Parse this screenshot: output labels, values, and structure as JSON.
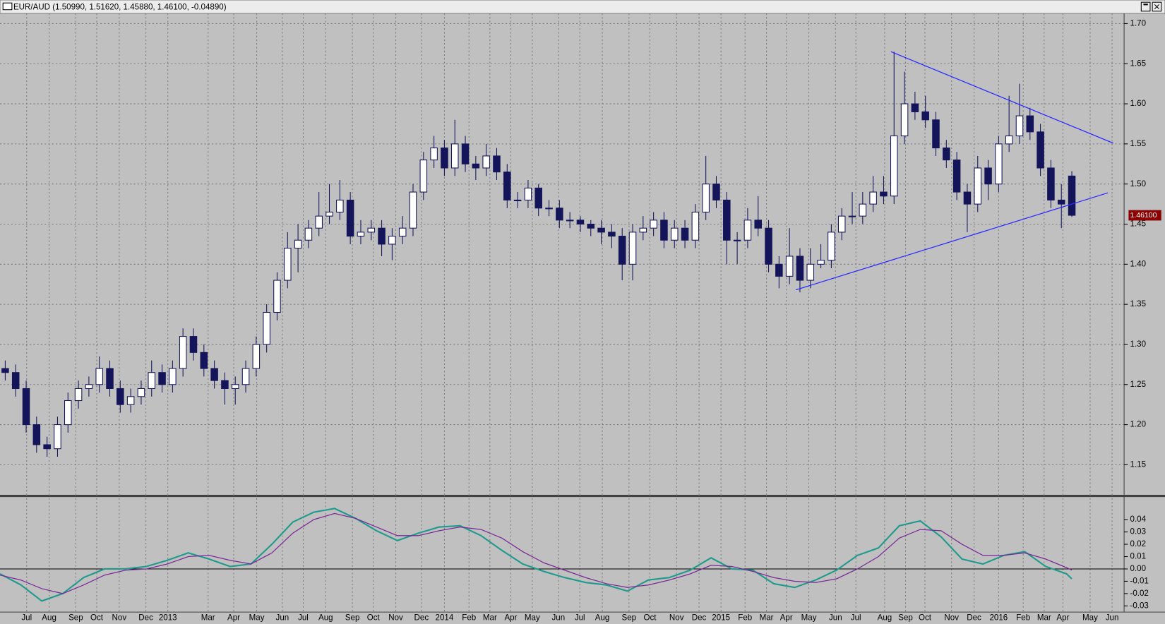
{
  "chart_data": [
    {
      "type": "candlestick",
      "title": "EUR/AUD (1.50990, 1.51620, 1.45880, 1.46100, -0.04890)",
      "last_price_label": "1.46100",
      "up_color": "#ffffff",
      "down_color": "#14145a",
      "grid": true,
      "xlim": [
        -1,
        214
      ],
      "ylim": [
        1.113,
        1.709
      ],
      "yticks": [
        1.15,
        {
          "value": 1.2,
          "label": "1.20"
        },
        1.25,
        {
          "value": 1.3,
          "label": "1.30"
        },
        1.35,
        {
          "value": 1.4,
          "label": "1.40"
        },
        1.45,
        {
          "value": 1.5,
          "label": "1.50"
        },
        1.55,
        {
          "value": 1.6,
          "label": "1.60"
        },
        1.65,
        {
          "value": 1.7,
          "label": "1.70"
        }
      ],
      "x": [
        0,
        2,
        4,
        6,
        8,
        10,
        12,
        14,
        16,
        18,
        20,
        22,
        24,
        26,
        28,
        30,
        32,
        34,
        36,
        38,
        40,
        42,
        44,
        46,
        48,
        50,
        52,
        54,
        56,
        58,
        60,
        62,
        64,
        66,
        68,
        70,
        72,
        74,
        76,
        78,
        80,
        82,
        84,
        86,
        88,
        90,
        92,
        94,
        96,
        98,
        100,
        102,
        104,
        106,
        108,
        110,
        112,
        114,
        116,
        118,
        120,
        122,
        124,
        126,
        128,
        130,
        132,
        134,
        136,
        138,
        140,
        142,
        144,
        146,
        148,
        150,
        152,
        154,
        156,
        158,
        160,
        162,
        164,
        166,
        168,
        170,
        172,
        174,
        176,
        178,
        180,
        182,
        184,
        186,
        188,
        190,
        192,
        194,
        196,
        198,
        200,
        202,
        204
      ],
      "open": [
        1.27,
        1.265,
        1.245,
        1.2,
        1.175,
        1.17,
        1.2,
        1.23,
        1.245,
        1.25,
        1.27,
        1.245,
        1.225,
        1.235,
        1.245,
        1.265,
        1.25,
        1.27,
        1.31,
        1.29,
        1.27,
        1.255,
        1.245,
        1.25,
        1.27,
        1.3,
        1.34,
        1.38,
        1.42,
        1.43,
        1.445,
        1.46,
        1.465,
        1.48,
        1.435,
        1.44,
        1.445,
        1.425,
        1.435,
        1.445,
        1.49,
        1.53,
        1.545,
        1.52,
        1.55,
        1.525,
        1.52,
        1.535,
        1.515,
        1.48,
        1.48,
        1.495,
        1.47,
        1.47,
        1.455,
        1.455,
        1.45,
        1.445,
        1.44,
        1.435,
        1.4,
        1.44,
        1.445,
        1.455,
        1.43,
        1.445,
        1.43,
        1.465,
        1.5,
        1.48,
        1.43,
        1.43,
        1.455,
        1.445,
        1.4,
        1.385,
        1.41,
        1.38,
        1.4,
        1.405,
        1.44,
        1.46,
        1.46,
        1.475,
        1.49,
        1.485,
        1.56,
        1.6,
        1.59,
        1.58,
        1.545,
        1.53,
        1.49,
        1.475,
        1.52,
        1.5,
        1.55,
        1.56,
        1.585,
        1.565,
        1.52,
        1.48,
        1.51
      ],
      "high": [
        1.28,
        1.275,
        1.255,
        1.21,
        1.185,
        1.21,
        1.24,
        1.255,
        1.26,
        1.285,
        1.28,
        1.255,
        1.245,
        1.255,
        1.28,
        1.275,
        1.28,
        1.32,
        1.32,
        1.3,
        1.28,
        1.265,
        1.26,
        1.28,
        1.31,
        1.35,
        1.39,
        1.44,
        1.45,
        1.455,
        1.49,
        1.5,
        1.505,
        1.49,
        1.455,
        1.455,
        1.455,
        1.445,
        1.46,
        1.5,
        1.54,
        1.56,
        1.555,
        1.58,
        1.56,
        1.535,
        1.55,
        1.545,
        1.525,
        1.49,
        1.505,
        1.5,
        1.48,
        1.48,
        1.465,
        1.46,
        1.455,
        1.455,
        1.45,
        1.445,
        1.45,
        1.46,
        1.465,
        1.465,
        1.455,
        1.455,
        1.475,
        1.535,
        1.51,
        1.49,
        1.44,
        1.47,
        1.485,
        1.455,
        1.41,
        1.445,
        1.42,
        1.42,
        1.425,
        1.45,
        1.47,
        1.49,
        1.49,
        1.51,
        1.51,
        1.665,
        1.64,
        1.615,
        1.61,
        1.59,
        1.555,
        1.54,
        1.5,
        1.535,
        1.53,
        1.56,
        1.61,
        1.625,
        1.595,
        1.575,
        1.53,
        1.5,
        1.516
      ],
      "low": [
        1.255,
        1.235,
        1.19,
        1.165,
        1.16,
        1.16,
        1.19,
        1.22,
        1.235,
        1.24,
        1.235,
        1.215,
        1.215,
        1.225,
        1.235,
        1.24,
        1.24,
        1.26,
        1.28,
        1.26,
        1.245,
        1.225,
        1.225,
        1.24,
        1.26,
        1.29,
        1.33,
        1.37,
        1.39,
        1.42,
        1.435,
        1.45,
        1.455,
        1.425,
        1.425,
        1.43,
        1.41,
        1.405,
        1.425,
        1.435,
        1.48,
        1.52,
        1.51,
        1.51,
        1.515,
        1.505,
        1.51,
        1.505,
        1.47,
        1.47,
        1.47,
        1.46,
        1.46,
        1.445,
        1.445,
        1.44,
        1.435,
        1.425,
        1.42,
        1.38,
        1.38,
        1.43,
        1.435,
        1.42,
        1.42,
        1.42,
        1.42,
        1.455,
        1.47,
        1.4,
        1.4,
        1.42,
        1.435,
        1.39,
        1.37,
        1.375,
        1.365,
        1.37,
        1.395,
        1.395,
        1.43,
        1.45,
        1.45,
        1.465,
        1.475,
        1.475,
        1.55,
        1.58,
        1.57,
        1.535,
        1.52,
        1.48,
        1.44,
        1.465,
        1.48,
        1.49,
        1.54,
        1.55,
        1.555,
        1.51,
        1.47,
        1.445,
        1.459
      ],
      "close": [
        1.265,
        1.245,
        1.2,
        1.175,
        1.17,
        1.2,
        1.23,
        1.245,
        1.25,
        1.27,
        1.245,
        1.225,
        1.235,
        1.245,
        1.265,
        1.25,
        1.27,
        1.31,
        1.29,
        1.27,
        1.255,
        1.245,
        1.25,
        1.27,
        1.3,
        1.34,
        1.38,
        1.42,
        1.43,
        1.445,
        1.46,
        1.465,
        1.48,
        1.435,
        1.44,
        1.445,
        1.425,
        1.435,
        1.445,
        1.49,
        1.53,
        1.545,
        1.52,
        1.55,
        1.525,
        1.52,
        1.535,
        1.515,
        1.48,
        1.48,
        1.495,
        1.47,
        1.47,
        1.455,
        1.455,
        1.45,
        1.445,
        1.44,
        1.435,
        1.4,
        1.44,
        1.445,
        1.455,
        1.43,
        1.445,
        1.43,
        1.465,
        1.5,
        1.48,
        1.43,
        1.43,
        1.455,
        1.445,
        1.4,
        1.385,
        1.41,
        1.38,
        1.4,
        1.405,
        1.44,
        1.46,
        1.46,
        1.475,
        1.49,
        1.485,
        1.56,
        1.6,
        1.59,
        1.58,
        1.545,
        1.53,
        1.49,
        1.475,
        1.52,
        1.5,
        1.55,
        1.56,
        1.585,
        1.565,
        1.52,
        1.48,
        1.475,
        1.461
      ],
      "trendlines": [
        {
          "color": "#2a2aff",
          "x": [
            169.4,
            211.9
          ],
          "y": [
            1.665,
            1.551
          ]
        },
        {
          "color": "#2a2aff",
          "x": [
            151.2,
            210.9
          ],
          "y": [
            1.368,
            1.489
          ]
        }
      ]
    },
    {
      "type": "line",
      "xlim": [
        -1,
        214
      ],
      "ylim": [
        -0.035,
        0.058
      ],
      "yticks": [
        0.04,
        0.03,
        0.02,
        0.01,
        {
          "value": 0,
          "label": "0.00"
        },
        -0.01,
        -0.02,
        -0.03
      ],
      "xticks": [
        {
          "value": 4.1,
          "label": "Jul"
        },
        {
          "value": 8.4,
          "label": "Aug"
        },
        {
          "value": 13.5,
          "label": "Sep"
        },
        {
          "value": 17.5,
          "label": "Oct"
        },
        {
          "value": 21.8,
          "label": "Nov"
        },
        {
          "value": 26.9,
          "label": "Dec"
        },
        {
          "value": 31.1,
          "label": "2013"
        },
        {
          "value": 38.8,
          "label": "Mar"
        },
        {
          "value": 43.7,
          "label": "Apr"
        },
        {
          "value": 48.1,
          "label": "May"
        },
        {
          "value": 53.0,
          "label": "Jun"
        },
        {
          "value": 57.0,
          "label": "Jul"
        },
        {
          "value": 61.3,
          "label": "Aug"
        },
        {
          "value": 66.4,
          "label": "Sep"
        },
        {
          "value": 70.4,
          "label": "Oct"
        },
        {
          "value": 74.7,
          "label": "Nov"
        },
        {
          "value": 79.6,
          "label": "Dec"
        },
        {
          "value": 84.0,
          "label": "2014"
        },
        {
          "value": 88.7,
          "label": "Feb"
        },
        {
          "value": 92.7,
          "label": "Mar"
        },
        {
          "value": 96.7,
          "label": "Apr"
        },
        {
          "value": 100.8,
          "label": "May"
        },
        {
          "value": 105.8,
          "label": "Jun"
        },
        {
          "value": 109.9,
          "label": "Jul"
        },
        {
          "value": 114.2,
          "label": "Aug"
        },
        {
          "value": 119.3,
          "label": "Sep"
        },
        {
          "value": 123.3,
          "label": "Oct"
        },
        {
          "value": 128.4,
          "label": "Nov"
        },
        {
          "value": 132.7,
          "label": "Dec"
        },
        {
          "value": 136.9,
          "label": "2015"
        },
        {
          "value": 141.5,
          "label": "Feb"
        },
        {
          "value": 145.6,
          "label": "Mar"
        },
        {
          "value": 149.4,
          "label": "Apr"
        },
        {
          "value": 153.7,
          "label": "May"
        },
        {
          "value": 158.8,
          "label": "Jun"
        },
        {
          "value": 162.7,
          "label": "Jul"
        },
        {
          "value": 168.2,
          "label": "Aug"
        },
        {
          "value": 172.2,
          "label": "Sep"
        },
        {
          "value": 175.9,
          "label": "Oct"
        },
        {
          "value": 181.0,
          "label": "Nov"
        },
        {
          "value": 185.3,
          "label": "Dec"
        },
        {
          "value": 190.0,
          "label": "2016"
        },
        {
          "value": 194.7,
          "label": "Feb"
        },
        {
          "value": 198.7,
          "label": "Mar"
        },
        {
          "value": 202.3,
          "label": "Apr"
        },
        {
          "value": 207.5,
          "label": "May"
        },
        {
          "value": 211.7,
          "label": "Jun"
        }
      ],
      "x": [
        -1,
        3,
        7,
        11,
        15,
        19,
        23,
        27,
        31,
        35,
        39,
        43,
        47,
        51,
        55,
        59,
        63,
        67,
        71,
        75,
        79,
        83,
        87,
        91,
        95,
        99,
        103,
        107,
        111,
        115,
        119,
        123,
        127,
        131,
        135,
        139,
        143,
        147,
        151,
        155,
        159,
        163,
        167,
        171,
        175,
        179,
        183,
        187,
        191,
        195,
        199,
        203,
        204
      ],
      "series": [
        {
          "color": "#1f9a8c",
          "values": [
            -0.004,
            -0.013,
            -0.026,
            -0.02,
            -0.007,
            0,
            0,
            0.002,
            0.007,
            0.013,
            0.008,
            0.002,
            0.004,
            0.02,
            0.038,
            0.046,
            0.049,
            0.041,
            0.031,
            0.023,
            0.029,
            0.034,
            0.035,
            0.027,
            0.015,
            0.004,
            -0.002,
            -0.007,
            -0.011,
            -0.013,
            -0.018,
            -0.009,
            -0.007,
            -0.001,
            0.009,
            0,
            -0.001,
            -0.012,
            -0.015,
            -0.009,
            -0.001,
            0.011,
            0.017,
            0.035,
            0.039,
            0.026,
            0.008,
            0.004,
            0.011,
            0.014,
            0.002,
            -0.004,
            -0.008
          ]
        },
        {
          "color": "#7a2a96",
          "values": [
            -0.005,
            -0.009,
            -0.016,
            -0.02,
            -0.013,
            -0.005,
            -0.001,
            0,
            0.004,
            0.01,
            0.011,
            0.007,
            0.004,
            0.013,
            0.029,
            0.04,
            0.045,
            0.041,
            0.034,
            0.027,
            0.027,
            0.031,
            0.034,
            0.032,
            0.025,
            0.014,
            0.005,
            -0.001,
            -0.007,
            -0.012,
            -0.015,
            -0.013,
            -0.009,
            -0.004,
            0.003,
            0.002,
            -0.002,
            -0.007,
            -0.01,
            -0.011,
            -0.008,
            0,
            0.01,
            0.025,
            0.032,
            0.031,
            0.02,
            0.011,
            0.011,
            0.013,
            0.008,
            0.001,
            -0.001
          ]
        }
      ]
    }
  ]
}
